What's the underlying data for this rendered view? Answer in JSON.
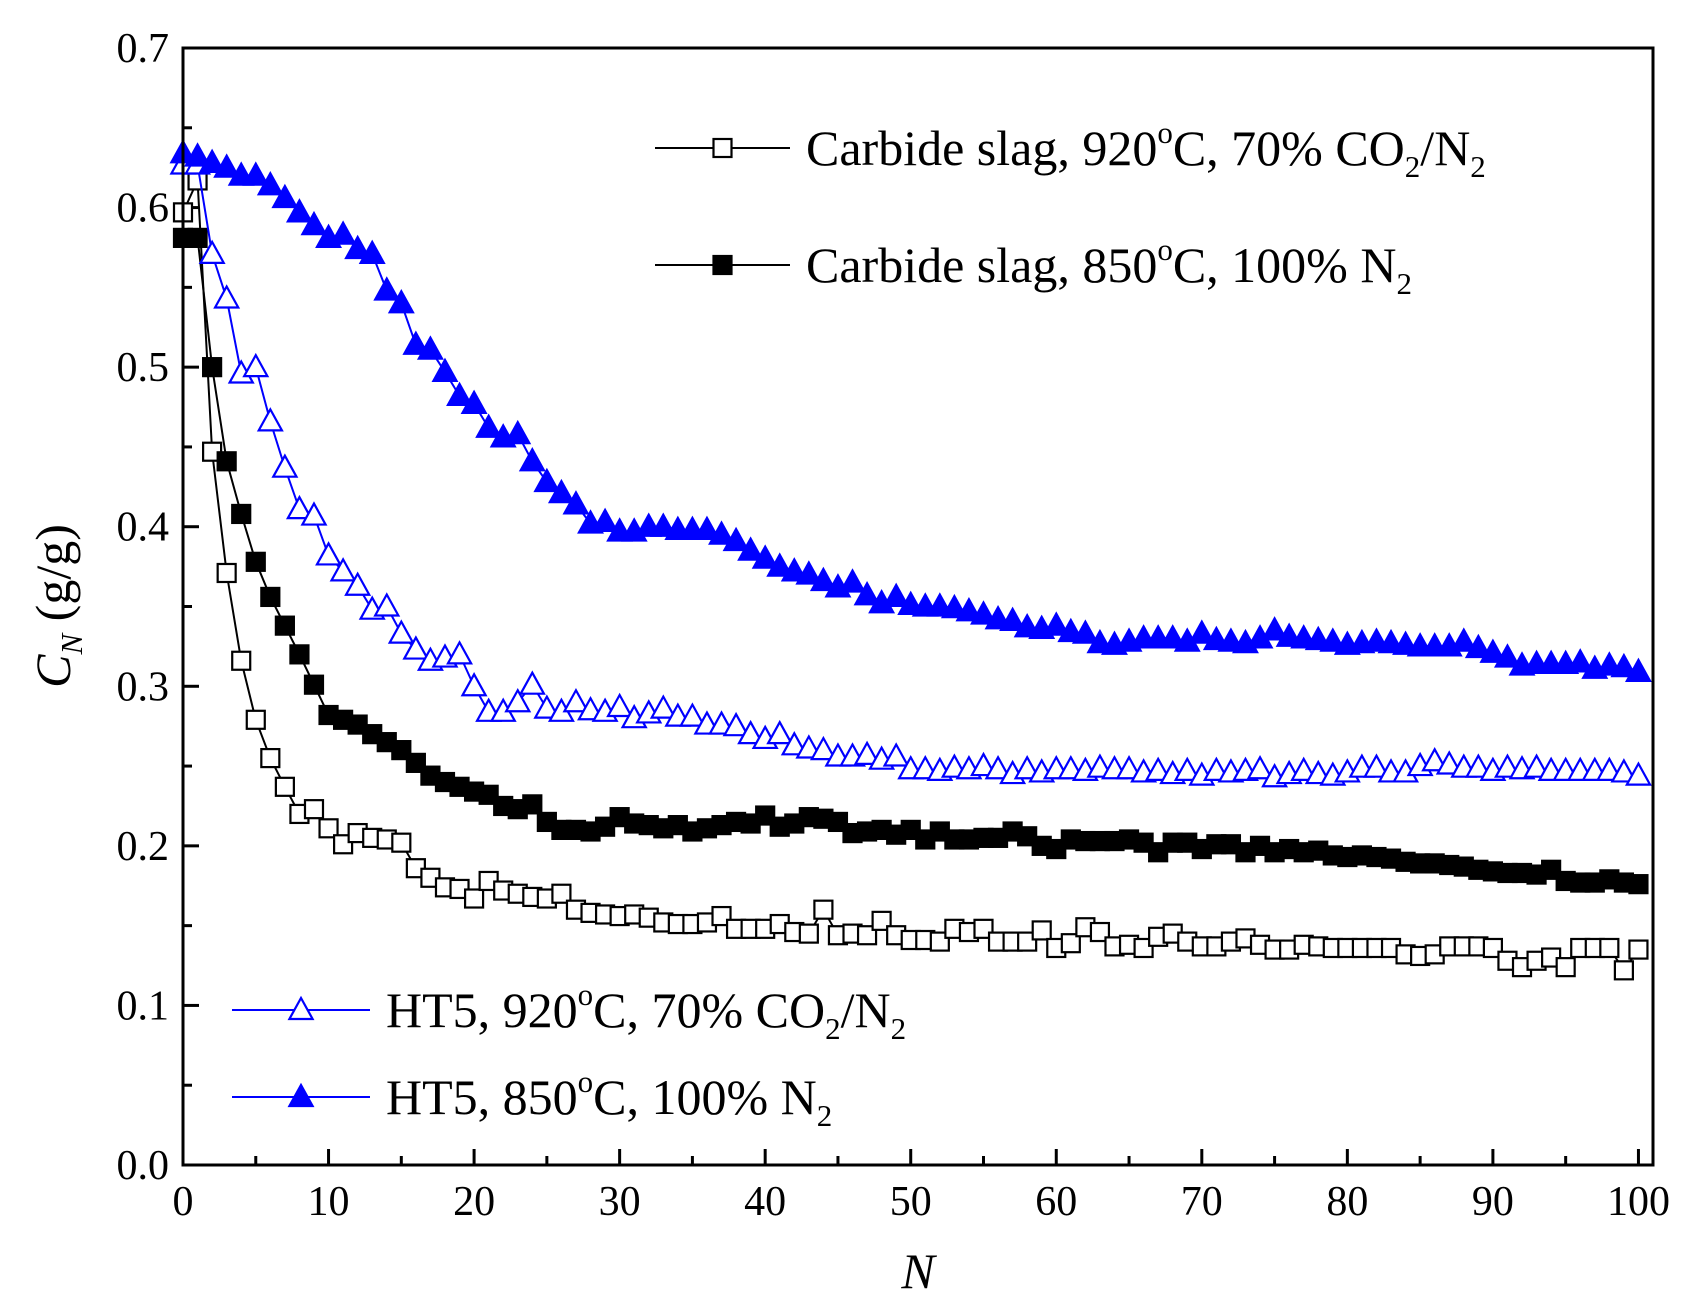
{
  "chart_data": {
    "type": "scatter",
    "xlabel": "N",
    "ylabel": "C",
    "ylabel_subscript": "N",
    "ylabel_unit": " (g/g)",
    "xlim": [
      0,
      101
    ],
    "ylim": [
      0.0,
      0.7
    ],
    "x_ticks": [
      "0",
      "10",
      "20",
      "30",
      "40",
      "50",
      "60",
      "70",
      "80",
      "90",
      "100"
    ],
    "y_ticks": [
      "0.0",
      "0.1",
      "0.2",
      "0.3",
      "0.4",
      "0.5",
      "0.6",
      "0.7"
    ],
    "series": [
      {
        "name": "Carbide slag, 920oC, 70% CO2/N2",
        "legend": {
          "pre": "Carbide slag, 920",
          "sup": "o",
          "mid": "C, 70% CO",
          "sub1": "2",
          "mid2": "/N",
          "sub2": "2"
        },
        "marker": "open-square",
        "color": "#000000",
        "x": [
          0,
          1,
          2,
          3,
          4,
          5,
          6,
          7,
          8,
          9,
          10,
          11,
          12,
          13,
          14,
          15,
          16,
          17,
          18,
          19,
          20,
          21,
          22,
          23,
          24,
          25,
          26,
          27,
          28,
          29,
          30,
          31,
          32,
          33,
          34,
          35,
          36,
          37,
          38,
          39,
          40,
          41,
          42,
          43,
          44,
          45,
          46,
          47,
          48,
          49,
          50,
          51,
          52,
          53,
          54,
          55,
          56,
          57,
          58,
          59,
          60,
          61,
          62,
          63,
          64,
          65,
          66,
          67,
          68,
          69,
          70,
          71,
          72,
          73,
          74,
          75,
          76,
          77,
          78,
          79,
          80,
          81,
          82,
          83,
          84,
          85,
          86,
          87,
          88,
          89,
          90,
          91,
          92,
          93,
          94,
          95,
          96,
          97,
          98,
          99,
          100
        ],
        "values": [
          0.597,
          0.617,
          0.447,
          0.371,
          0.316,
          0.279,
          0.255,
          0.237,
          0.22,
          0.223,
          0.211,
          0.201,
          0.208,
          0.205,
          0.204,
          0.202,
          0.186,
          0.18,
          0.174,
          0.173,
          0.167,
          0.178,
          0.172,
          0.17,
          0.168,
          0.167,
          0.17,
          0.16,
          0.158,
          0.157,
          0.156,
          0.157,
          0.155,
          0.152,
          0.151,
          0.151,
          0.152,
          0.156,
          0.148,
          0.148,
          0.148,
          0.151,
          0.146,
          0.145,
          0.16,
          0.144,
          0.145,
          0.144,
          0.153,
          0.144,
          0.141,
          0.141,
          0.14,
          0.148,
          0.146,
          0.148,
          0.14,
          0.14,
          0.14,
          0.147,
          0.136,
          0.139,
          0.149,
          0.146,
          0.137,
          0.138,
          0.136,
          0.143,
          0.145,
          0.14,
          0.137,
          0.137,
          0.14,
          0.142,
          0.138,
          0.135,
          0.135,
          0.138,
          0.137,
          0.136,
          0.136,
          0.136,
          0.136,
          0.136,
          0.132,
          0.131,
          0.132,
          0.137,
          0.137,
          0.137,
          0.136,
          0.128,
          0.124,
          0.128,
          0.13,
          0.124,
          0.136,
          0.136,
          0.136,
          0.122,
          0.135
        ]
      },
      {
        "name": "Carbide slag, 850oC, 100% N2",
        "legend": {
          "pre": "Carbide slag, 850",
          "sup": "o",
          "mid": "C, 100% N",
          "sub1": "2"
        },
        "marker": "filled-square",
        "color": "#000000",
        "x": [
          0,
          1,
          2,
          3,
          4,
          5,
          6,
          7,
          8,
          9,
          10,
          11,
          12,
          13,
          14,
          15,
          16,
          17,
          18,
          19,
          20,
          21,
          22,
          23,
          24,
          25,
          26,
          27,
          28,
          29,
          30,
          31,
          32,
          33,
          34,
          35,
          36,
          37,
          38,
          39,
          40,
          41,
          42,
          43,
          44,
          45,
          46,
          47,
          48,
          49,
          50,
          51,
          52,
          53,
          54,
          55,
          56,
          57,
          58,
          59,
          60,
          61,
          62,
          63,
          64,
          65,
          66,
          67,
          68,
          69,
          70,
          71,
          72,
          73,
          74,
          75,
          76,
          77,
          78,
          79,
          80,
          81,
          82,
          83,
          84,
          85,
          86,
          87,
          88,
          89,
          90,
          91,
          92,
          93,
          94,
          95,
          96,
          97,
          98,
          99,
          100
        ],
        "values": [
          0.581,
          0.581,
          0.5,
          0.441,
          0.408,
          0.378,
          0.356,
          0.338,
          0.32,
          0.301,
          0.282,
          0.279,
          0.276,
          0.27,
          0.265,
          0.26,
          0.252,
          0.244,
          0.24,
          0.237,
          0.234,
          0.232,
          0.225,
          0.223,
          0.226,
          0.215,
          0.21,
          0.21,
          0.209,
          0.212,
          0.218,
          0.214,
          0.213,
          0.211,
          0.213,
          0.209,
          0.211,
          0.213,
          0.215,
          0.214,
          0.219,
          0.212,
          0.214,
          0.218,
          0.217,
          0.215,
          0.208,
          0.209,
          0.21,
          0.207,
          0.21,
          0.204,
          0.209,
          0.204,
          0.204,
          0.205,
          0.205,
          0.209,
          0.206,
          0.2,
          0.198,
          0.204,
          0.203,
          0.203,
          0.203,
          0.204,
          0.202,
          0.196,
          0.202,
          0.202,
          0.198,
          0.201,
          0.201,
          0.196,
          0.2,
          0.196,
          0.198,
          0.196,
          0.197,
          0.194,
          0.193,
          0.194,
          0.193,
          0.192,
          0.19,
          0.189,
          0.189,
          0.188,
          0.187,
          0.185,
          0.184,
          0.183,
          0.183,
          0.182,
          0.185,
          0.178,
          0.177,
          0.177,
          0.179,
          0.177,
          0.176
        ]
      },
      {
        "name": "HT5, 920oC, 70% CO2/N2",
        "legend": {
          "pre": "HT5, 920",
          "sup": "o",
          "mid": "C, 70% CO",
          "sub1": "2",
          "mid2": "/N",
          "sub2": "2"
        },
        "marker": "open-triangle",
        "color": "#0000ff",
        "x": [
          0,
          1,
          2,
          3,
          4,
          5,
          6,
          7,
          8,
          9,
          10,
          11,
          12,
          13,
          14,
          15,
          16,
          17,
          18,
          19,
          20,
          21,
          22,
          23,
          24,
          25,
          26,
          27,
          28,
          29,
          30,
          31,
          32,
          33,
          34,
          35,
          36,
          37,
          38,
          39,
          40,
          41,
          42,
          43,
          44,
          45,
          46,
          47,
          48,
          49,
          50,
          51,
          52,
          53,
          54,
          55,
          56,
          57,
          58,
          59,
          60,
          61,
          62,
          63,
          64,
          65,
          66,
          67,
          68,
          69,
          70,
          71,
          72,
          73,
          74,
          75,
          76,
          77,
          78,
          79,
          80,
          81,
          82,
          83,
          84,
          85,
          86,
          87,
          88,
          89,
          90,
          91,
          92,
          93,
          94,
          95,
          96,
          97,
          98,
          99,
          100
        ],
        "values": [
          0.627,
          0.627,
          0.571,
          0.543,
          0.496,
          0.5,
          0.466,
          0.437,
          0.411,
          0.407,
          0.382,
          0.372,
          0.363,
          0.348,
          0.35,
          0.333,
          0.323,
          0.316,
          0.318,
          0.32,
          0.3,
          0.284,
          0.284,
          0.29,
          0.301,
          0.286,
          0.284,
          0.29,
          0.285,
          0.284,
          0.287,
          0.28,
          0.283,
          0.286,
          0.281,
          0.281,
          0.276,
          0.276,
          0.275,
          0.27,
          0.267,
          0.27,
          0.263,
          0.261,
          0.26,
          0.256,
          0.256,
          0.257,
          0.254,
          0.256,
          0.248,
          0.248,
          0.247,
          0.249,
          0.248,
          0.25,
          0.248,
          0.245,
          0.248,
          0.246,
          0.248,
          0.248,
          0.247,
          0.249,
          0.248,
          0.248,
          0.246,
          0.247,
          0.245,
          0.247,
          0.244,
          0.247,
          0.246,
          0.247,
          0.248,
          0.243,
          0.245,
          0.247,
          0.245,
          0.244,
          0.246,
          0.249,
          0.249,
          0.246,
          0.246,
          0.25,
          0.253,
          0.251,
          0.249,
          0.249,
          0.247,
          0.249,
          0.248,
          0.249,
          0.247,
          0.247,
          0.247,
          0.247,
          0.247,
          0.246,
          0.244
        ]
      },
      {
        "name": "HT5, 850oC, 100% N2",
        "legend": {
          "pre": "HT5, 850",
          "sup": "o",
          "mid": "C, 100% N",
          "sub1": "2"
        },
        "marker": "filled-triangle",
        "color": "#0000ff",
        "x": [
          0,
          1,
          2,
          3,
          4,
          5,
          6,
          7,
          8,
          9,
          10,
          11,
          12,
          13,
          14,
          15,
          16,
          17,
          18,
          19,
          20,
          21,
          22,
          23,
          24,
          25,
          26,
          27,
          28,
          29,
          30,
          31,
          32,
          33,
          34,
          35,
          36,
          37,
          38,
          39,
          40,
          41,
          42,
          43,
          44,
          45,
          46,
          47,
          48,
          49,
          50,
          51,
          52,
          53,
          54,
          55,
          56,
          57,
          58,
          59,
          60,
          61,
          62,
          63,
          64,
          65,
          66,
          67,
          68,
          69,
          70,
          71,
          72,
          73,
          74,
          75,
          76,
          77,
          78,
          79,
          80,
          81,
          82,
          83,
          84,
          85,
          86,
          87,
          88,
          89,
          90,
          91,
          92,
          93,
          94,
          95,
          96,
          97,
          98,
          99,
          100
        ],
        "values": [
          0.634,
          0.632,
          0.628,
          0.625,
          0.62,
          0.62,
          0.614,
          0.606,
          0.597,
          0.589,
          0.581,
          0.583,
          0.574,
          0.571,
          0.548,
          0.54,
          0.514,
          0.511,
          0.497,
          0.482,
          0.477,
          0.462,
          0.456,
          0.458,
          0.441,
          0.428,
          0.421,
          0.414,
          0.402,
          0.403,
          0.397,
          0.397,
          0.4,
          0.4,
          0.398,
          0.398,
          0.398,
          0.395,
          0.391,
          0.385,
          0.38,
          0.375,
          0.372,
          0.37,
          0.366,
          0.362,
          0.365,
          0.357,
          0.352,
          0.356,
          0.351,
          0.35,
          0.35,
          0.349,
          0.347,
          0.345,
          0.342,
          0.341,
          0.337,
          0.336,
          0.338,
          0.334,
          0.333,
          0.327,
          0.326,
          0.328,
          0.33,
          0.33,
          0.33,
          0.328,
          0.333,
          0.329,
          0.328,
          0.327,
          0.33,
          0.335,
          0.331,
          0.33,
          0.329,
          0.328,
          0.326,
          0.327,
          0.328,
          0.327,
          0.326,
          0.325,
          0.325,
          0.325,
          0.328,
          0.324,
          0.321,
          0.318,
          0.313,
          0.314,
          0.314,
          0.314,
          0.315,
          0.311,
          0.313,
          0.312,
          0.309
        ]
      }
    ]
  }
}
